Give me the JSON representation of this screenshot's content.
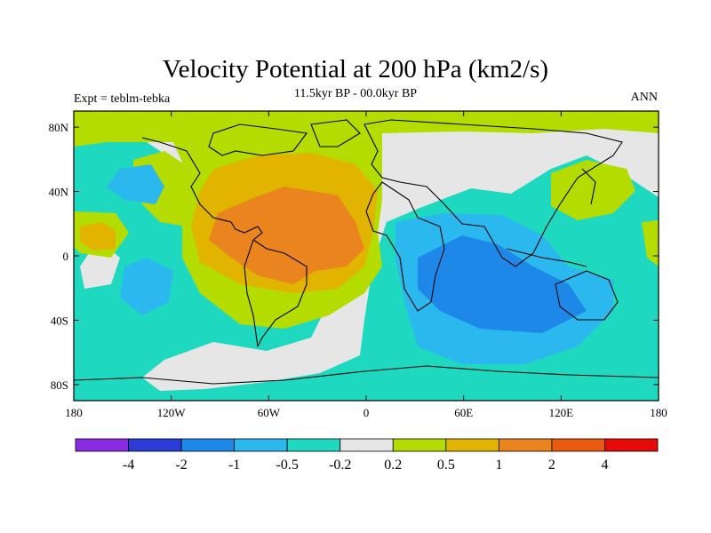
{
  "chart_data": {
    "type": "heatmap",
    "title": "Velocity Potential at 200 hPa (km2/s)",
    "subtitle": "11.5kyr BP - 00.0kyr BP",
    "left_label": "Expt = teblm-tebka",
    "right_label": "ANN",
    "xlim": [
      -180,
      180
    ],
    "ylim": [
      -90,
      90
    ],
    "x_ticks": [
      {
        "lon": -180,
        "label": "180"
      },
      {
        "lon": -120,
        "label": "120W"
      },
      {
        "lon": -60,
        "label": "60W"
      },
      {
        "lon": 0,
        "label": "0"
      },
      {
        "lon": 60,
        "label": "60E"
      },
      {
        "lon": 120,
        "label": "120E"
      },
      {
        "lon": 180,
        "label": "180"
      }
    ],
    "y_ticks": [
      {
        "lat": 80,
        "label": "80N"
      },
      {
        "lat": 40,
        "label": "40N"
      },
      {
        "lat": 0,
        "label": "0"
      },
      {
        "lat": -40,
        "label": "40S"
      },
      {
        "lat": -80,
        "label": "80S"
      }
    ],
    "colorbar": {
      "colors": [
        "#8a2be2",
        "#2a3bd6",
        "#1e88e8",
        "#2bb8ee",
        "#1ed8c0",
        "#e6e6e6",
        "#b4dc00",
        "#e1b400",
        "#e9841e",
        "#e85a10",
        "#e60a0a"
      ],
      "levels": [
        -4,
        -2,
        -1,
        -0.5,
        -0.2,
        0.2,
        0.5,
        1,
        2,
        4
      ],
      "labels": [
        "-4",
        "-2",
        "-1",
        "-0.5",
        "-0.2",
        "0.2",
        "0.5",
        "1",
        "2",
        "4"
      ]
    },
    "anomaly_blobs": [
      {
        "lon": -35,
        "lat": 10,
        "rx": 72,
        "ry": 42,
        "value": 0.7
      },
      {
        "lon": -45,
        "lat": 12,
        "rx": 45,
        "ry": 28,
        "value": 1.5
      },
      {
        "lon": -70,
        "lat": 70,
        "rx": 90,
        "ry": 22,
        "value": 0.6
      },
      {
        "lon": 120,
        "lat": 42,
        "rx": 35,
        "ry": 18,
        "value": 0.6
      },
      {
        "lon": 0,
        "lat": 82,
        "rx": 180,
        "ry": 10,
        "value": 0.6
      },
      {
        "lon": 90,
        "lat": -20,
        "rx": 75,
        "ry": 55,
        "value": -0.6
      },
      {
        "lon": 75,
        "lat": -15,
        "rx": 50,
        "ry": 28,
        "value": -1.2
      },
      {
        "lon": -155,
        "lat": 0,
        "rx": 25,
        "ry": 50,
        "value": -0.4
      },
      {
        "lon": -158,
        "lat": 10,
        "rx": 16,
        "ry": 10,
        "value": 0.6
      }
    ]
  }
}
